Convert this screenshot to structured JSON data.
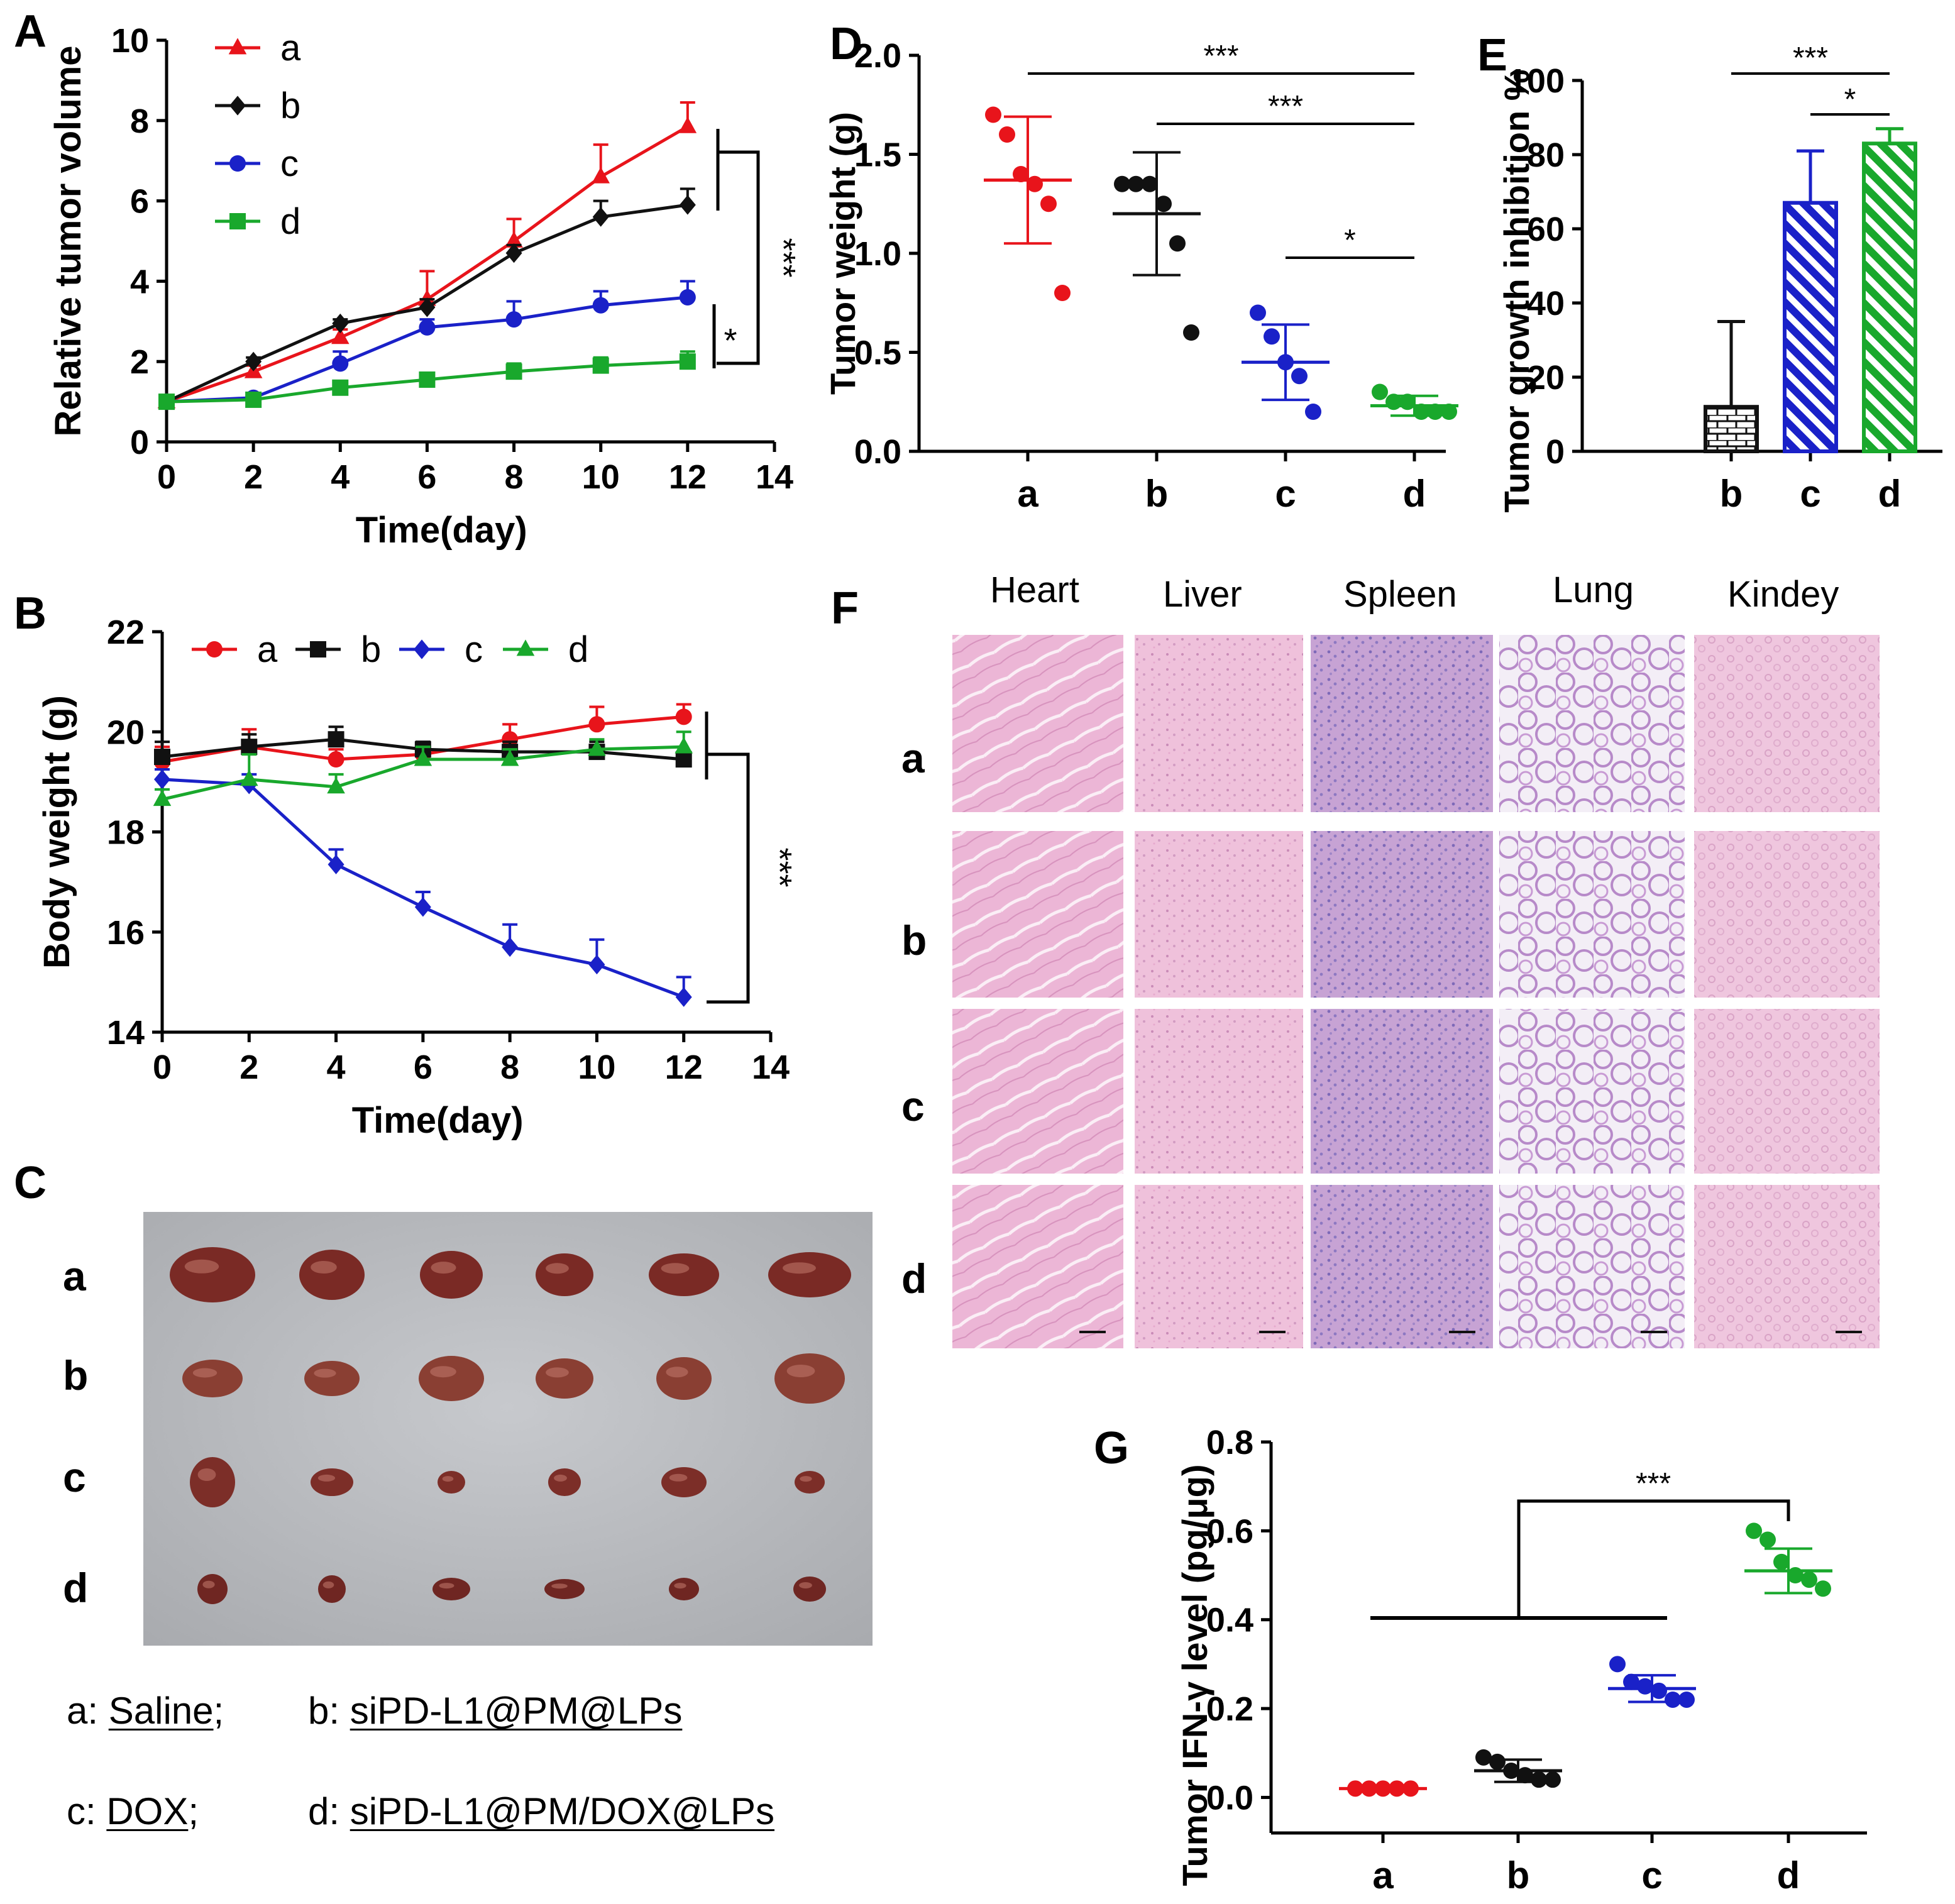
{
  "figure": {
    "panel_labels": {
      "A": "A",
      "B": "B",
      "C": "C",
      "D": "D",
      "E": "E",
      "F": "F",
      "G": "G"
    }
  },
  "group_colors": {
    "a": "#e8141b",
    "b": "#111111",
    "c": "#1a21c8",
    "d": "#19a82c"
  },
  "chart_data": [
    {
      "id": "A",
      "type": "line",
      "title": "",
      "xlabel": "Time(day)",
      "ylabel": "Relative tumor volume",
      "xlim": [
        0,
        14
      ],
      "ylim": [
        0,
        10
      ],
      "xticks": [
        0,
        2,
        4,
        6,
        8,
        10,
        12,
        14
      ],
      "yticks": [
        0,
        2,
        4,
        6,
        8,
        10
      ],
      "legend_position": "top-left",
      "series": [
        {
          "name": "a",
          "color": "#e8141b",
          "marker": "triangle",
          "x": [
            0,
            2,
            4,
            6,
            8,
            10,
            12
          ],
          "y": [
            1.0,
            1.75,
            2.6,
            3.55,
            5.0,
            6.6,
            7.85
          ],
          "err": [
            0.1,
            0.15,
            0.2,
            0.7,
            0.55,
            0.8,
            0.6
          ]
        },
        {
          "name": "b",
          "color": "#111111",
          "marker": "diamond",
          "x": [
            0,
            2,
            4,
            6,
            8,
            10,
            12
          ],
          "y": [
            1.0,
            2.0,
            2.95,
            3.35,
            4.7,
            5.6,
            5.9
          ],
          "err": [
            0.1,
            0.1,
            0.1,
            0.2,
            0.2,
            0.4,
            0.4
          ]
        },
        {
          "name": "c",
          "color": "#1a21c8",
          "marker": "circle",
          "x": [
            0,
            2,
            4,
            6,
            8,
            10,
            12
          ],
          "y": [
            1.0,
            1.1,
            1.95,
            2.85,
            3.05,
            3.4,
            3.6
          ],
          "err": [
            0.05,
            0.1,
            0.3,
            0.2,
            0.45,
            0.35,
            0.4
          ]
        },
        {
          "name": "d",
          "color": "#19a82c",
          "marker": "square",
          "x": [
            0,
            2,
            4,
            6,
            8,
            10,
            12
          ],
          "y": [
            1.0,
            1.05,
            1.35,
            1.55,
            1.75,
            1.9,
            2.0
          ],
          "err": [
            0.05,
            0.1,
            0.1,
            0.1,
            0.2,
            0.2,
            0.25
          ]
        }
      ],
      "significance": [
        {
          "label": "***",
          "from": "a",
          "to": "d"
        },
        {
          "label": "*",
          "from": "c",
          "to": "d"
        }
      ]
    },
    {
      "id": "B",
      "type": "line",
      "title": "",
      "xlabel": "Time(day)",
      "ylabel": "Body weight (g)",
      "xlim": [
        0,
        14
      ],
      "ylim": [
        14,
        22
      ],
      "xticks": [
        0,
        2,
        4,
        6,
        8,
        10,
        12,
        14
      ],
      "yticks": [
        14,
        16,
        18,
        20,
        22
      ],
      "legend_position": "top",
      "series": [
        {
          "name": "a",
          "color": "#e8141b",
          "marker": "circle",
          "x": [
            0,
            2,
            4,
            6,
            8,
            10,
            12
          ],
          "y": [
            19.4,
            19.7,
            19.45,
            19.55,
            19.85,
            20.15,
            20.3
          ],
          "err": [
            0.3,
            0.35,
            0.2,
            0.15,
            0.3,
            0.35,
            0.25
          ]
        },
        {
          "name": "b",
          "color": "#111111",
          "marker": "square",
          "x": [
            0,
            2,
            4,
            6,
            8,
            10,
            12
          ],
          "y": [
            19.5,
            19.7,
            19.85,
            19.65,
            19.6,
            19.6,
            19.45
          ],
          "err": [
            0.3,
            0.25,
            0.25,
            0.15,
            0.2,
            0.2,
            0.15
          ]
        },
        {
          "name": "c",
          "color": "#1a21c8",
          "marker": "diamond",
          "x": [
            0,
            2,
            4,
            6,
            8,
            10,
            12
          ],
          "y": [
            19.05,
            18.95,
            17.35,
            16.5,
            15.7,
            15.35,
            14.7
          ],
          "err": [
            0.2,
            0.2,
            0.3,
            0.3,
            0.45,
            0.5,
            0.4
          ]
        },
        {
          "name": "d",
          "color": "#19a82c",
          "marker": "triangle",
          "x": [
            0,
            2,
            4,
            6,
            8,
            10,
            12
          ],
          "y": [
            18.65,
            19.05,
            18.9,
            19.45,
            19.45,
            19.65,
            19.7
          ],
          "err": [
            0.2,
            0.5,
            0.25,
            0.25,
            0.2,
            0.2,
            0.3
          ]
        }
      ],
      "significance": [
        {
          "label": "***",
          "from": "a",
          "to": "c"
        }
      ]
    },
    {
      "id": "D",
      "type": "scatter",
      "title": "",
      "xlabel": "",
      "ylabel": "Tumor weight (g)",
      "ylim": [
        0,
        2.0
      ],
      "yticks": [
        "0.0",
        "0.5",
        "1.0",
        "1.5",
        "2.0"
      ],
      "categories": [
        "a",
        "b",
        "c",
        "d"
      ],
      "points": {
        "a": [
          1.7,
          1.6,
          1.4,
          1.35,
          1.25,
          0.8
        ],
        "b": [
          1.35,
          1.35,
          1.35,
          1.25,
          1.05,
          0.6
        ],
        "c": [
          0.7,
          0.58,
          0.45,
          0.38,
          0.2
        ],
        "d": [
          0.3,
          0.25,
          0.25,
          0.2,
          0.2,
          0.2
        ]
      },
      "mean": [
        1.37,
        1.2,
        0.45,
        0.23
      ],
      "sd": [
        0.32,
        0.31,
        0.19,
        0.05
      ],
      "significance": [
        {
          "label": "***",
          "from": "a",
          "to": "d"
        },
        {
          "label": "***",
          "from": "b",
          "to": "d"
        },
        {
          "label": "*",
          "from": "c",
          "to": "d"
        }
      ]
    },
    {
      "id": "E",
      "type": "bar",
      "title": "",
      "xlabel": "",
      "ylabel": "Tumor growth inhibition %",
      "ylim": [
        0,
        100
      ],
      "yticks": [
        0,
        20,
        40,
        60,
        80,
        100
      ],
      "categories": [
        "b",
        "c",
        "d"
      ],
      "values": [
        12,
        67,
        83
      ],
      "err": [
        23,
        14,
        4
      ],
      "significance": [
        {
          "label": "***",
          "from": "b",
          "to": "d"
        },
        {
          "label": "*",
          "from": "c",
          "to": "d"
        }
      ]
    },
    {
      "id": "G",
      "type": "scatter",
      "title": "",
      "xlabel": "",
      "ylabel": "Tumor IFN-γ level (pg/μg)",
      "ylim": [
        -0.08,
        0.8
      ],
      "yticks": [
        "0.0",
        "0.2",
        "0.4",
        "0.6",
        "0.8"
      ],
      "categories": [
        "a",
        "b",
        "c",
        "d"
      ],
      "points": {
        "a": [
          0.02,
          0.02,
          0.02,
          0.02,
          0.02
        ],
        "b": [
          0.09,
          0.08,
          0.06,
          0.05,
          0.04,
          0.04
        ],
        "c": [
          0.3,
          0.26,
          0.25,
          0.24,
          0.22,
          0.22
        ],
        "d": [
          0.6,
          0.58,
          0.53,
          0.5,
          0.49,
          0.47
        ]
      },
      "mean": [
        0.02,
        0.06,
        0.245,
        0.51
      ],
      "sd": [
        0.0,
        0.025,
        0.03,
        0.05
      ],
      "significance": [
        {
          "label": "***",
          "from": "a-c",
          "to": "d"
        }
      ]
    }
  ],
  "panelC": {
    "row_labels": [
      "a",
      "b",
      "c",
      "d"
    ],
    "caption": {
      "a_key": "a:",
      "a_text": "Saline",
      "a_sep": ";",
      "b_key": "b:",
      "b_text": "siPD-L1@PM@LPs",
      "c_key": "c:",
      "c_text": "DOX",
      "c_sep": ";",
      "d_key": "d:",
      "d_text": "siPD-L1@PM/DOX@LPs"
    }
  },
  "panelF": {
    "columns": [
      "Heart",
      "Liver",
      "Spleen",
      "Lung",
      "Kindey"
    ],
    "rows": [
      "a",
      "b",
      "c",
      "d"
    ]
  }
}
